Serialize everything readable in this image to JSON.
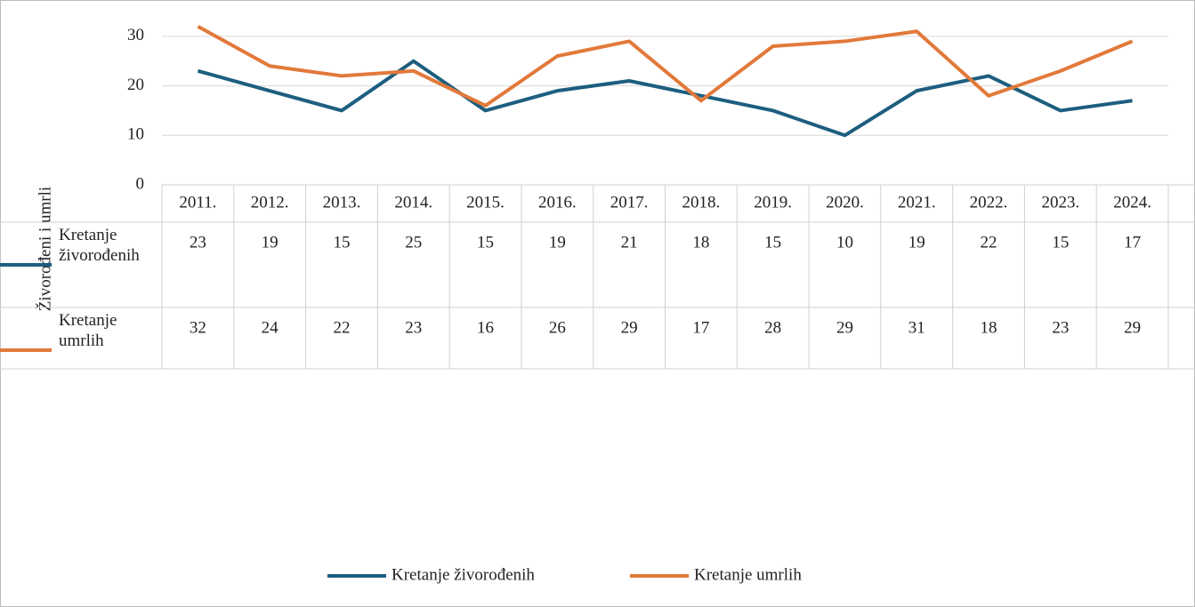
{
  "chart_data": {
    "type": "line",
    "y_axis_label": "Živorođeni i umrli",
    "categories": [
      "2011.",
      "2012.",
      "2013.",
      "2014.",
      "2015.",
      "2016.",
      "2017.",
      "2018.",
      "2019.",
      "2020.",
      "2021.",
      "2022.",
      "2023.",
      "2024."
    ],
    "series": [
      {
        "name": "Kretanje živorođenih",
        "color": "#1d5e7f",
        "values": [
          23,
          19,
          15,
          25,
          15,
          19,
          21,
          18,
          15,
          10,
          19,
          22,
          15,
          17
        ]
      },
      {
        "name": "Kretanje umrlih",
        "color": "#e2793a",
        "values": [
          32,
          24,
          22,
          23,
          16,
          26,
          29,
          17,
          28,
          29,
          31,
          18,
          23,
          29
        ]
      }
    ],
    "ylim": [
      0,
      35
    ],
    "yticks": [
      0,
      10,
      20,
      30
    ],
    "grid": true,
    "legend": "bottom"
  }
}
